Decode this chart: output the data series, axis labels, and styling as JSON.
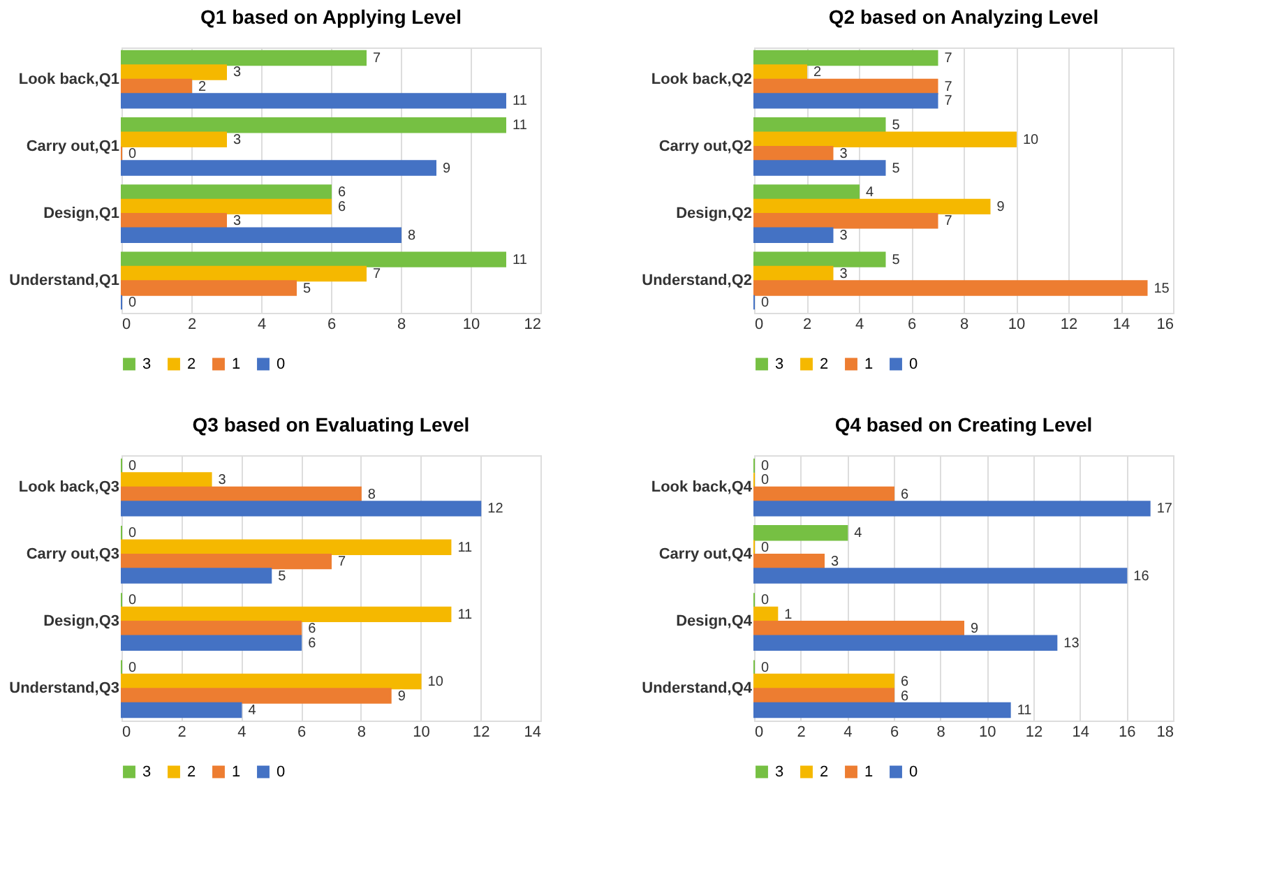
{
  "chart_data": [
    {
      "type": "bar",
      "orientation": "horizontal",
      "title": "Q1 based on Applying Level",
      "categories": [
        "Look back,Q1",
        "Carry out,Q1",
        "Design,Q1",
        "Understand,Q1"
      ],
      "series": [
        {
          "name": "3",
          "color": "#76c043",
          "values": [
            7,
            11,
            6,
            11
          ]
        },
        {
          "name": "2",
          "color": "#f5b800",
          "values": [
            3,
            3,
            6,
            7
          ]
        },
        {
          "name": "1",
          "color": "#ed7d31",
          "values": [
            2,
            0,
            3,
            5
          ]
        },
        {
          "name": "0",
          "color": "#4472c4",
          "values": [
            11,
            9,
            8,
            0
          ]
        }
      ],
      "xlim": [
        0,
        12
      ],
      "xticks": [
        0,
        2,
        4,
        6,
        8,
        10,
        12
      ],
      "grid": "x",
      "legend": "bottom",
      "data_labels": true
    },
    {
      "type": "bar",
      "orientation": "horizontal",
      "title": "Q2 based on Analyzing Level",
      "categories": [
        "Look back,Q2",
        "Carry out,Q2",
        "Design,Q2",
        "Understand,Q2"
      ],
      "series": [
        {
          "name": "3",
          "color": "#76c043",
          "values": [
            7,
            5,
            4,
            5
          ]
        },
        {
          "name": "2",
          "color": "#f5b800",
          "values": [
            2,
            10,
            9,
            3
          ]
        },
        {
          "name": "1",
          "color": "#ed7d31",
          "values": [
            7,
            3,
            7,
            15
          ]
        },
        {
          "name": "0",
          "color": "#4472c4",
          "values": [
            7,
            5,
            3,
            0
          ]
        }
      ],
      "xlim": [
        0,
        16
      ],
      "xticks": [
        0,
        2,
        4,
        6,
        8,
        10,
        12,
        14,
        16
      ],
      "grid": "x",
      "legend": "bottom",
      "data_labels": true
    },
    {
      "type": "bar",
      "orientation": "horizontal",
      "title": "Q3 based on Evaluating Level",
      "categories": [
        "Look back,Q3",
        "Carry out,Q3",
        "Design,Q3",
        "Understand,Q3"
      ],
      "series": [
        {
          "name": "3",
          "color": "#76c043",
          "values": [
            0,
            0,
            0,
            0
          ]
        },
        {
          "name": "2",
          "color": "#f5b800",
          "values": [
            3,
            11,
            11,
            10
          ]
        },
        {
          "name": "1",
          "color": "#ed7d31",
          "values": [
            8,
            7,
            6,
            9
          ]
        },
        {
          "name": "0",
          "color": "#4472c4",
          "values": [
            12,
            5,
            6,
            4
          ]
        }
      ],
      "xlim": [
        0,
        14
      ],
      "xticks": [
        0,
        2,
        4,
        6,
        8,
        10,
        12,
        14
      ],
      "grid": "x",
      "legend": "bottom",
      "data_labels": true
    },
    {
      "type": "bar",
      "orientation": "horizontal",
      "title": "Q4 based on Creating Level",
      "categories": [
        "Look back,Q4",
        "Carry out,Q4",
        "Design,Q4",
        "Understand,Q4"
      ],
      "series": [
        {
          "name": "3",
          "color": "#76c043",
          "values": [
            0,
            4,
            0,
            0
          ]
        },
        {
          "name": "2",
          "color": "#f5b800",
          "values": [
            0,
            0,
            1,
            6
          ]
        },
        {
          "name": "1",
          "color": "#ed7d31",
          "values": [
            6,
            3,
            9,
            6
          ]
        },
        {
          "name": "0",
          "color": "#4472c4",
          "values": [
            17,
            16,
            13,
            11
          ]
        }
      ],
      "xlim": [
        0,
        18
      ],
      "xticks": [
        0,
        2,
        4,
        6,
        8,
        10,
        12,
        14,
        16,
        18
      ],
      "grid": "x",
      "legend": "bottom",
      "data_labels": true
    }
  ]
}
